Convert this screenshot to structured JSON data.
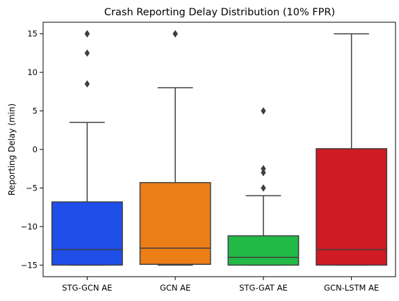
{
  "chart_data": {
    "type": "box",
    "title": "Crash Reporting Delay Distribution (10% FPR)",
    "xlabel": "",
    "ylabel": "Reporting Delay (min)",
    "ylim": [
      -16.5,
      16.5
    ],
    "yticks": [
      -15,
      -10,
      -5,
      0,
      5,
      10,
      15
    ],
    "grid": false,
    "categories": [
      "STG-GCN AE",
      "GCN AE",
      "STG-GAT AE",
      "GCN-LSTM AE"
    ],
    "boxes": [
      {
        "category": "STG-GCN AE",
        "color": "#1f4ee8",
        "whisker_low": -15,
        "q1": -15,
        "median": -13,
        "q3": -6.8,
        "whisker_high": 3.5,
        "outliers": [
          8.5,
          12.5,
          15,
          15
        ]
      },
      {
        "category": "GCN AE",
        "color": "#ec7e17",
        "whisker_low": -15,
        "q1": -14.9,
        "median": -12.8,
        "q3": -4.3,
        "whisker_high": 8,
        "outliers": [
          15,
          15
        ]
      },
      {
        "category": "STG-GAT AE",
        "color": "#22b947",
        "whisker_low": -15,
        "q1": -15,
        "median": -14,
        "q3": -11.2,
        "whisker_high": -6,
        "outliers": [
          -5,
          -3,
          -2.5,
          5
        ]
      },
      {
        "category": "GCN-LSTM AE",
        "color": "#cf1b24",
        "whisker_low": -15,
        "q1": -15,
        "median": -13,
        "q3": 0.1,
        "whisker_high": 15,
        "outliers": []
      }
    ]
  }
}
